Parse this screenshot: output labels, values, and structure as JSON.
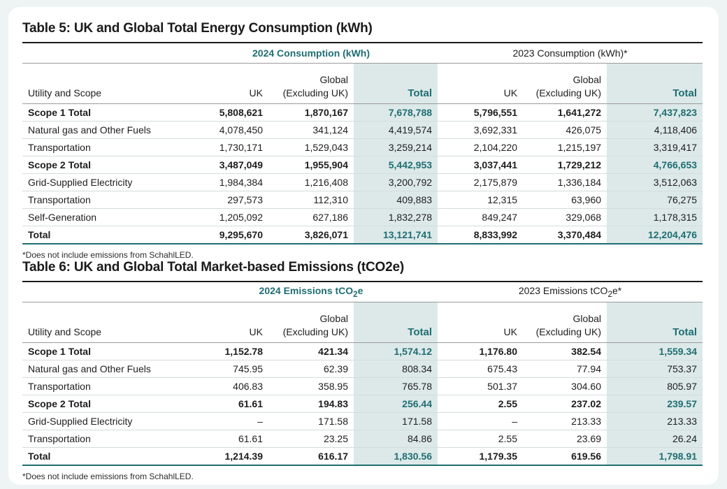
{
  "table5": {
    "title": "Table 5: UK and Global Total Energy Consumption (kWh)",
    "year_a": "2024 Consumption (kWh)",
    "year_b": "2023 Consumption (kWh)*",
    "col_scope": "Utility and Scope",
    "col_uk": "UK",
    "col_global_1": "Global",
    "col_global_2": "(Excluding UK)",
    "col_total": "Total",
    "rows": [
      {
        "label": "Scope 1 Total",
        "bold": true,
        "v": [
          "5,808,621",
          "1,870,167",
          "7,678,788",
          "5,796,551",
          "1,641,272",
          "7,437,823"
        ]
      },
      {
        "label": "Natural gas and Other Fuels",
        "bold": false,
        "v": [
          "4,078,450",
          "341,124",
          "4,419,574",
          "3,692,331",
          "426,075",
          "4,118,406"
        ]
      },
      {
        "label": "Transportation",
        "bold": false,
        "v": [
          "1,730,171",
          "1,529,043",
          "3,259,214",
          "2,104,220",
          "1,215,197",
          "3,319,417"
        ]
      },
      {
        "label": "Scope 2 Total",
        "bold": true,
        "v": [
          "3,487,049",
          "1,955,904",
          "5,442,953",
          "3,037,441",
          "1,729,212",
          "4,766,653"
        ]
      },
      {
        "label": "Grid-Supplied Electricity",
        "bold": false,
        "v": [
          "1,984,384",
          "1,216,408",
          "3,200,792",
          "2,175,879",
          "1,336,184",
          "3,512,063"
        ]
      },
      {
        "label": "Transportation",
        "bold": false,
        "v": [
          "297,573",
          "112,310",
          "409,883",
          "12,315",
          "63,960",
          "76,275"
        ]
      },
      {
        "label": "Self-Generation",
        "bold": false,
        "v": [
          "1,205,092",
          "627,186",
          "1,832,278",
          "849,247",
          "329,068",
          "1,178,315"
        ]
      },
      {
        "label": "Total",
        "bold": true,
        "v": [
          "9,295,670",
          "3,826,071",
          "13,121,741",
          "8,833,992",
          "3,370,484",
          "12,204,476"
        ]
      }
    ],
    "footnote": "*Does not include emissions from SchahlLED."
  },
  "table6": {
    "title": "Table 6: UK and Global Total Market-based Emissions (tCO2e)",
    "year_a_pre": "2024 Emissions tCO",
    "year_a_sub": "2",
    "year_a_post": "e",
    "year_b_pre": "2023 Emissions tCO",
    "year_b_sub": "2",
    "year_b_post": "e*",
    "col_scope": "Utility and Scope",
    "col_uk": "UK",
    "col_global_1": "Global",
    "col_global_2": "(Excluding UK)",
    "col_total": "Total",
    "rows": [
      {
        "label": "Scope 1 Total",
        "bold": true,
        "v": [
          "1,152.78",
          "421.34",
          "1,574.12",
          "1,176.80",
          "382.54",
          "1,559.34"
        ]
      },
      {
        "label": "Natural gas and Other Fuels",
        "bold": false,
        "v": [
          "745.95",
          "62.39",
          "808.34",
          "675.43",
          "77.94",
          "753.37"
        ]
      },
      {
        "label": "Transportation",
        "bold": false,
        "v": [
          "406.83",
          "358.95",
          "765.78",
          "501.37",
          "304.60",
          "805.97"
        ]
      },
      {
        "label": "Scope 2 Total",
        "bold": true,
        "v": [
          "61.61",
          "194.83",
          "256.44",
          "2.55",
          "237.02",
          "239.57"
        ]
      },
      {
        "label": "Grid-Supplied Electricity",
        "bold": false,
        "v": [
          "–",
          "171.58",
          "171.58",
          "–",
          "213.33",
          "213.33"
        ]
      },
      {
        "label": "Transportation",
        "bold": false,
        "v": [
          "61.61",
          "23.25",
          "84.86",
          "2.55",
          "23.69",
          "26.24"
        ]
      },
      {
        "label": "Total",
        "bold": true,
        "v": [
          "1,214.39",
          "616.17",
          "1,830.56",
          "1,179.35",
          "619.56",
          "1,798.91"
        ]
      }
    ],
    "footnote": "*Does not include emissions from SchahlLED."
  }
}
